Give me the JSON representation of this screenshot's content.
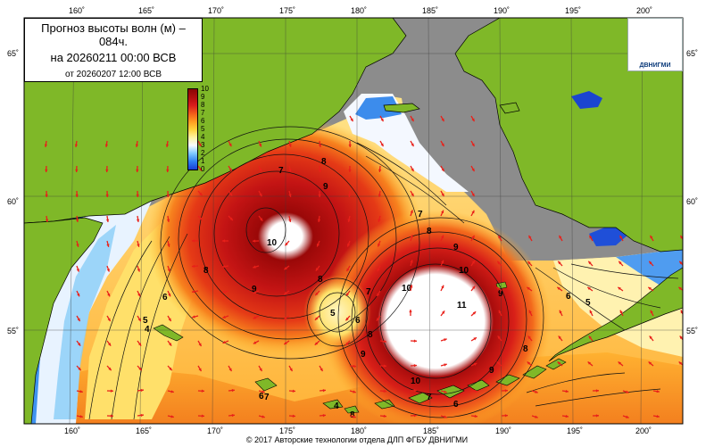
{
  "map": {
    "title_line1": "Прогноз высоты волн (м) –",
    "title_line1b": "084ч.",
    "title_line2": "на 20260211 00:00 ВСВ",
    "title_line3": "от 20260207 12:00 ВСВ",
    "logo_label": "ДВНИГМИ",
    "footer": "© 2017 Авторские технологии отдела ДЛП ФГБУ ДВНИГМИ",
    "colors": {
      "land": "#7fb828",
      "no_data": "#8c8c8c",
      "arrow": "#e8201a",
      "frame": "#000000"
    },
    "longitude_labels": [
      "160˚",
      "165˚",
      "170˚",
      "175˚",
      "180˚",
      "185˚",
      "190˚",
      "195˚",
      "200˚"
    ],
    "latitude_labels": [
      "65˚",
      "60˚",
      "55˚"
    ],
    "colorbar": {
      "ticks": [
        "10",
        "9",
        "8",
        "7",
        "6",
        "5",
        "4",
        "3",
        "2",
        "1",
        "0"
      ],
      "unit": "м",
      "max": 10,
      "min": 0
    },
    "contour_labels": [
      "10",
      "9",
      "8",
      "7",
      "6",
      "5",
      "4",
      "10",
      "9",
      "8",
      "11",
      "10",
      "9",
      "8",
      "7",
      "6",
      "5",
      "8",
      "9",
      "9",
      "10",
      "8",
      "6",
      "7",
      "8",
      "9",
      "5",
      "6",
      "4",
      "8",
      "7",
      "6",
      "7"
    ]
  }
}
